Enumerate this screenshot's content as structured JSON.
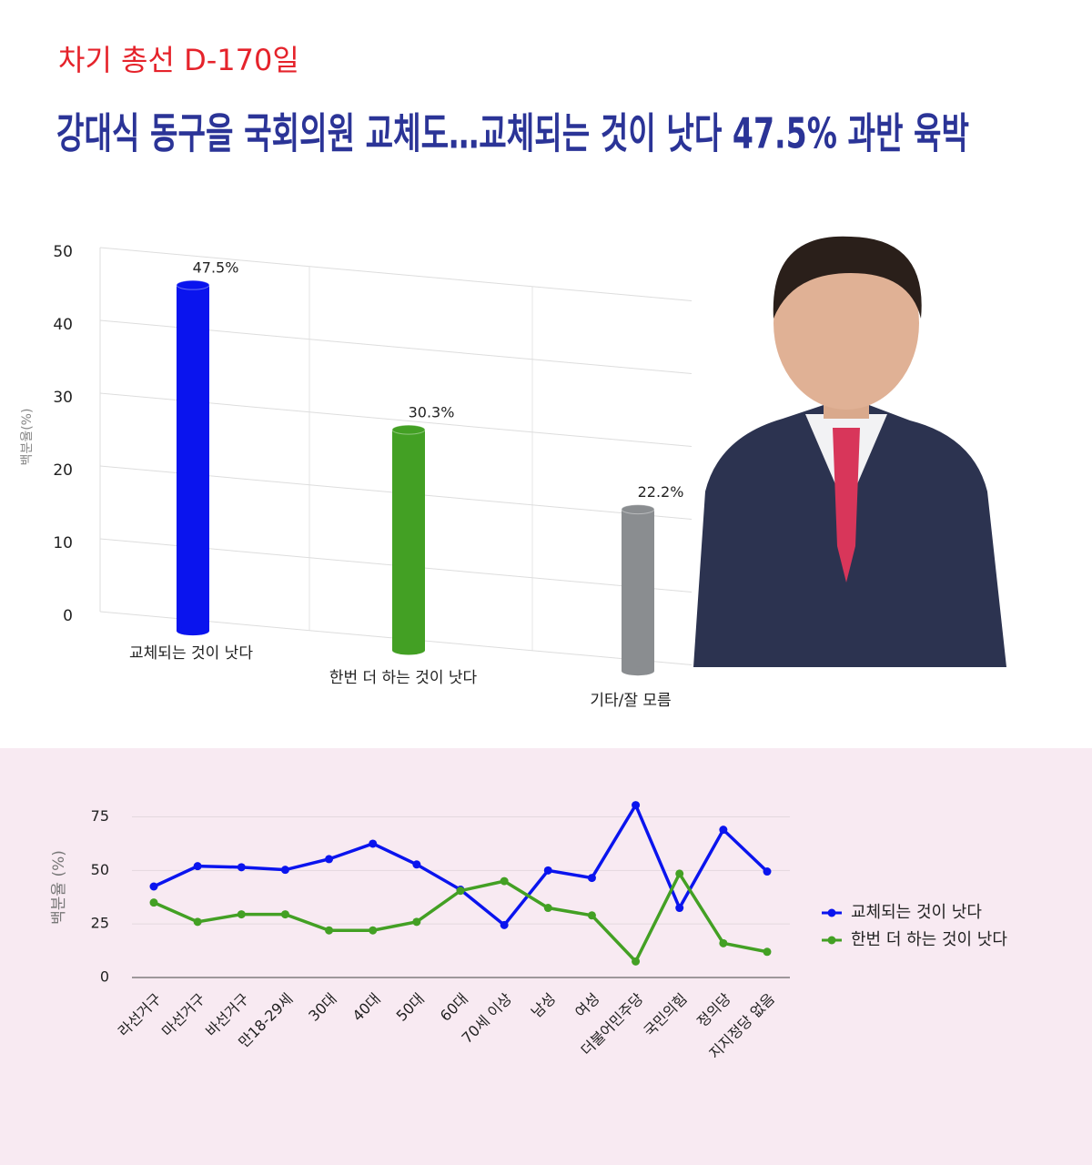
{
  "header": {
    "kicker": "차기 총선 D-170일",
    "title": "강대식 동구을 국회의원 교체도…교체되는 것이 낫다 47.5% 과반 육박"
  },
  "chart_data": [
    {
      "type": "bar",
      "ylabel": "백분율(%)",
      "categories": [
        "교체되는 것이 낫다",
        "한번 더 하는 것이 낫다",
        "기타/잘 모름"
      ],
      "values": [
        47.5,
        30.3,
        22.2
      ],
      "value_labels": [
        "47.5%",
        "30.3%",
        "22.2%"
      ],
      "colors": [
        "#0a14ee",
        "#43a024",
        "#8a8d90"
      ],
      "ylim": [
        0,
        50
      ],
      "yticks": [
        0,
        10,
        20,
        30,
        40,
        50
      ],
      "grid": true
    },
    {
      "type": "line",
      "ylabel": "백분율 (%)",
      "categories": [
        "라선거구",
        "마선거구",
        "바선거구",
        "만18-29세",
        "30대",
        "40대",
        "50대",
        "60대",
        "70세 이상",
        "남성",
        "여성",
        "더불어민주당",
        "국민의힘",
        "정의당",
        "지지정당 없음"
      ],
      "series": [
        {
          "name": "교체되는 것이 낫다",
          "color": "#0a14ee",
          "values": [
            42.5,
            52,
            51.5,
            50.3,
            55.3,
            62.5,
            52.8,
            41,
            24.5,
            50,
            46.5,
            80.5,
            32.5,
            69,
            49.5
          ]
        },
        {
          "name": "한번 더 하는 것이 낫다",
          "color": "#43a024",
          "values": [
            35,
            26,
            29.5,
            29.5,
            22,
            22,
            26,
            40.5,
            45,
            32.5,
            29,
            7.5,
            48.5,
            16,
            12
          ]
        }
      ],
      "ylim": [
        0,
        85
      ],
      "yticks": [
        0,
        25,
        50,
        75
      ],
      "grid": true,
      "legend": "right"
    }
  ]
}
